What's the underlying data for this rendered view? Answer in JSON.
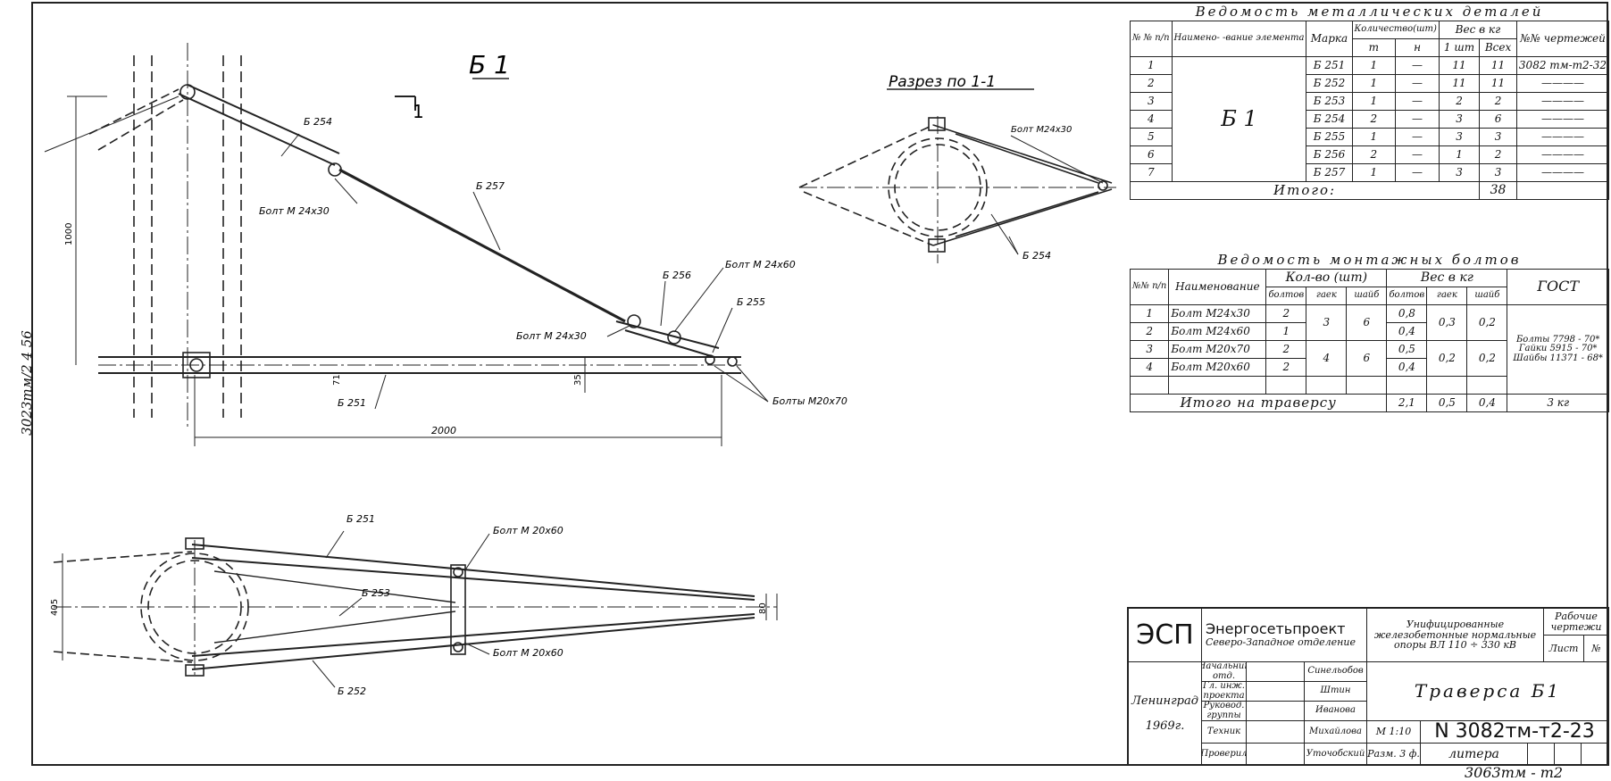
{
  "sheet": {
    "side_code": "3023тм/2 4 56",
    "corner_stamp": "3063тм - т2"
  },
  "main_view": {
    "title": "Б 1",
    "section_mark": "1",
    "labels": {
      "b254": "Б 254",
      "bolt_m24x30_top": "Болт М 24x30",
      "b257": "Б 257",
      "b256": "Б 256",
      "bolt_m24x60": "Болт М 24x60",
      "b255": "Б 255",
      "bolt_m24x30_low": "Болт М 24x30",
      "b251": "Б 251",
      "bolts_m20x70": "Болты М20x70",
      "dim_1000": "1000",
      "dim_2000": "2000",
      "dim_35": "35",
      "dim_71": "71"
    }
  },
  "section_view": {
    "title": "Разрез по 1-1",
    "bolt_label": "Болт М24x30",
    "b254": "Б 254"
  },
  "plan_view": {
    "labels": {
      "b251": "Б 251",
      "bolt_top": "Болт М 20x60",
      "b253": "Б 253",
      "bolt_bottom": "Болт М 20x60",
      "b252": "Б 252",
      "dim_405": "405",
      "dim_80": "80"
    }
  },
  "metal_table": {
    "title": "Ведомость металлических деталей",
    "headers": {
      "num": "№ № п/п",
      "name": "Наимено- -вание элемента",
      "mark": "Марка",
      "qty": "Количество(шт)",
      "qty_t": "т",
      "qty_n": "н",
      "weight": "Вес в кг",
      "weight_1": "1 шт",
      "weight_all": "Всех",
      "drawing": "№№ чертежей"
    },
    "element": "Б 1",
    "rows": [
      {
        "n": "1",
        "mark": "Б 251",
        "t": "1",
        "h": "—",
        "w1": "11",
        "wall": "11",
        "draw": "3082 тм-т2-32"
      },
      {
        "n": "2",
        "mark": "Б 252",
        "t": "1",
        "h": "—",
        "w1": "11",
        "wall": "11",
        "draw": "————"
      },
      {
        "n": "3",
        "mark": "Б 253",
        "t": "1",
        "h": "—",
        "w1": "2",
        "wall": "2",
        "draw": "————"
      },
      {
        "n": "4",
        "mark": "Б 254",
        "t": "2",
        "h": "—",
        "w1": "3",
        "wall": "6",
        "draw": "————"
      },
      {
        "n": "5",
        "mark": "Б 255",
        "t": "1",
        "h": "—",
        "w1": "3",
        "wall": "3",
        "draw": "————"
      },
      {
        "n": "6",
        "mark": "Б 256",
        "t": "2",
        "h": "—",
        "w1": "1",
        "wall": "2",
        "draw": "————"
      },
      {
        "n": "7",
        "mark": "Б 257",
        "t": "1",
        "h": "—",
        "w1": "3",
        "wall": "3",
        "draw": "————"
      }
    ],
    "total_label": "Итого:",
    "total_value": "38"
  },
  "bolts_table": {
    "title": "Ведомость монтажных болтов",
    "headers": {
      "num": "№№ п/п",
      "name": "Наименование",
      "qty": "Кол-во (шт)",
      "qty_bolts": "болтов",
      "qty_nuts": "гаек",
      "qty_washers": "шайб",
      "weight": "Вес в кг",
      "w_bolts": "болтов",
      "w_nuts": "гаек",
      "w_washers": "шайб",
      "gost": "ГОСТ"
    },
    "rows": [
      {
        "n": "1",
        "name": "Болт М24x30",
        "bolts": "2",
        "wb": "0,8"
      },
      {
        "n": "2",
        "name": "Болт М24x60",
        "bolts": "1",
        "wb": "0,4"
      },
      {
        "n": "3",
        "name": "Болт М20x70",
        "bolts": "2",
        "wb": "0,5"
      },
      {
        "n": "4",
        "name": "Болт М20x60",
        "bolts": "2",
        "wb": "0,4"
      }
    ],
    "group1": {
      "nuts": "3",
      "washers": "6",
      "wn": "0,3",
      "ww": "0,2"
    },
    "group2": {
      "nuts": "4",
      "washers": "6",
      "wn": "0,2",
      "ww": "0,2"
    },
    "gost_text": "Болты 7798 - 70* Гайки 5915 - 70* Шайбы 11371 - 68*",
    "total_label": "Итого на траверсу",
    "total_bolts": "2,1",
    "total_nuts": "0,5",
    "total_washers": "0,4",
    "total_all": "3 кг"
  },
  "title_block": {
    "esp": "ЭСП",
    "org": "Энергосетьпроект",
    "dept": "Северо-Западное отделение",
    "project": "Унифицированные железобетонные нормальные опоры ВЛ 110 ÷ 330 кВ",
    "working": "Рабочие чертежи",
    "sheet_label": "Лист",
    "sheet_no": "№",
    "roles": [
      {
        "role": "Начальник отд.",
        "sign": "",
        "name": "Синельобов"
      },
      {
        "role": "Гл. инж. проекта",
        "sign": "",
        "name": "Штин"
      },
      {
        "role": "Руковод. группы",
        "sign": "",
        "name": "Иванова"
      },
      {
        "role": "Техник",
        "sign": "",
        "name": "Михайлова"
      },
      {
        "role": "Проверил",
        "sign": "",
        "name": "Уточобский"
      }
    ],
    "title": "Траверса Б1",
    "city": "Ленинград",
    "year": "1969г.",
    "scale": "М 1:10",
    "format": "Разм. 3 ф.",
    "number": "N 3082тм-т2-23",
    "litera": "литера"
  }
}
